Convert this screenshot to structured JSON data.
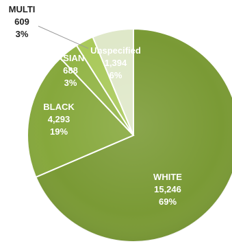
{
  "chart_data": {
    "type": "pie",
    "title": "",
    "slices": [
      {
        "label": "WHITE",
        "value": 15246,
        "display_value": "15,246",
        "percent": "69%",
        "color": "#7a9a35",
        "label_color": "#ffffff"
      },
      {
        "label": "BLACK",
        "value": 4293,
        "display_value": "4,293",
        "percent": "19%",
        "color": "#86a83c",
        "label_color": "#ffffff"
      },
      {
        "label": "ASIAN",
        "value": 688,
        "display_value": "688",
        "percent": "3%",
        "color": "#93b547",
        "label_color": "#ffffff"
      },
      {
        "label": "MULTI",
        "value": 609,
        "display_value": "609",
        "percent": "3%",
        "color": "#a9c95a",
        "label_color": "#222222"
      },
      {
        "label": "Unspecified",
        "value": 1394,
        "display_value": "1,394",
        "percent": "6%",
        "color": "#dfe8c9",
        "label_color": "#ffffff"
      }
    ],
    "edge_color": "#ffffff"
  }
}
